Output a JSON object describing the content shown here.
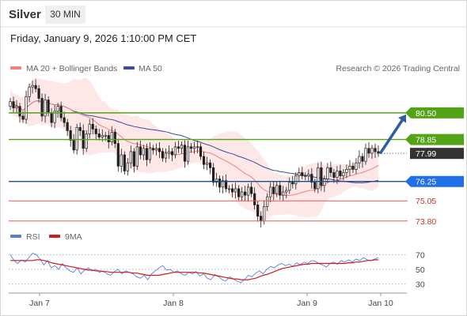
{
  "header": {
    "symbol": "Silver",
    "timeframe": "30 MIN",
    "datetime": "Friday, January 9, 2026 1:10:00 PM CET"
  },
  "legend": {
    "ma20": "MA 20 + Bollinger Bands",
    "ma50": "MA 50",
    "copyright": "Research © 2026 Trading Central",
    "rsi": "RSI",
    "ma9": "9MA"
  },
  "colors": {
    "ma20": "#f08080",
    "ma50": "#3a4e9c",
    "band": "#fde3e3",
    "candle": "#1f1f1f",
    "resistance": "#53a317",
    "pivot": "#1a4e8c",
    "support": "#e85959",
    "current": "#333333",
    "rsi": "#5b7fd8",
    "rsi_ma": "#d11a1a",
    "arrow": "#2d5f9e"
  },
  "chart_data": [
    {
      "type": "candlestick",
      "x_labels": [
        "Jan 7",
        "Jan 8",
        "Jan 9",
        "Jan 10"
      ],
      "ylim": [
        73.3,
        82.5
      ],
      "grid": false,
      "legend_position": "top-left",
      "levels": [
        {
          "value": 80.5,
          "label": "80.50",
          "kind": "resistance"
        },
        {
          "value": 78.85,
          "label": "78.85",
          "kind": "resistance"
        },
        {
          "value": 77.99,
          "label": "77.99",
          "kind": "current"
        },
        {
          "value": 76.25,
          "label": "76.25",
          "kind": "pivot"
        },
        {
          "value": 75.05,
          "label": "75.05",
          "kind": "support"
        },
        {
          "value": 73.8,
          "label": "73.80",
          "kind": "support"
        }
      ],
      "arrow": {
        "from": 77.99,
        "to": 80.5
      },
      "series": [
        {
          "name": "Silver",
          "close": [
            81.2,
            80.8,
            80.9,
            80.3,
            80.1,
            81.5,
            82.1,
            82.2,
            82.0,
            81.4,
            80.3,
            81.3,
            80.5,
            79.9,
            80.6,
            80.9,
            80.2,
            79.9,
            79.4,
            78.8,
            78.2,
            79.6,
            79.4,
            78.3,
            79.2,
            79.8,
            79.5,
            79.2,
            79.0,
            79.1,
            79.1,
            78.7,
            79.3,
            78.6,
            77.2,
            77.9,
            76.9,
            77.4,
            78.1,
            77.2,
            78.4,
            77.9,
            78.3,
            77.6,
            78.3,
            78.2,
            78.3,
            78.1,
            77.7,
            78.0,
            78.1,
            77.9,
            78.4,
            78.3,
            78.5,
            77.5,
            78.4,
            78.3,
            78.4,
            78.4,
            77.8,
            77.3,
            77.4,
            77.1,
            76.2,
            76.4,
            75.9,
            76.3,
            75.8,
            75.8,
            75.6,
            75.8,
            75.3,
            75.6,
            75.4,
            75.9,
            75.5,
            74.8,
            74.1,
            73.8,
            74.7,
            75.3,
            75.9,
            75.5,
            76.0,
            75.4,
            75.6,
            75.7,
            76.2,
            76.1,
            76.6,
            76.8,
            76.6,
            76.6,
            76.7,
            76.2,
            75.8,
            77.1,
            76.0,
            76.4,
            77.1,
            76.8,
            76.5,
            76.9,
            76.6,
            76.8,
            77.0,
            77.2,
            77.0,
            77.4,
            77.8,
            77.5,
            78.3,
            78.0,
            78.3,
            78.1,
            77.99
          ]
        }
      ]
    },
    {
      "type": "line",
      "ylim": [
        20,
        80
      ],
      "y_ticks": [
        70,
        50,
        30
      ],
      "grid": false,
      "legend_position": "top-left",
      "series": [
        {
          "name": "RSI",
          "values": [
            70,
            62,
            58,
            63,
            60,
            66,
            72,
            70,
            64,
            56,
            62,
            52,
            55,
            50,
            58,
            52,
            48,
            46,
            52,
            44,
            49,
            52,
            48,
            50,
            46,
            48,
            44,
            42,
            47,
            50,
            44,
            48,
            46,
            44,
            40,
            38,
            42,
            36,
            44,
            48,
            52,
            55,
            49,
            50,
            46,
            48,
            44,
            42,
            46,
            44,
            47,
            41,
            44,
            38,
            36,
            43,
            40,
            36,
            34,
            40,
            37,
            34,
            32,
            36,
            42,
            40,
            45,
            48,
            44,
            50,
            54,
            52,
            56,
            58,
            55,
            57,
            54,
            59,
            56,
            60,
            58,
            62,
            61,
            58,
            56,
            53,
            58,
            60,
            57,
            62,
            60,
            63,
            60,
            64,
            62,
            66,
            63,
            62,
            64,
            66
          ]
        },
        {
          "name": "9MA",
          "values": [
            62,
            62,
            62,
            62,
            62,
            62,
            62,
            63,
            63,
            62,
            61,
            59,
            58,
            57,
            56,
            55,
            54,
            53,
            52,
            51,
            50,
            49,
            49,
            48,
            48,
            47,
            47,
            46,
            46,
            46,
            46,
            46,
            46,
            45,
            45,
            44,
            43,
            42,
            42,
            42,
            42,
            43,
            44,
            45,
            46,
            46,
            46,
            46,
            46,
            46,
            46,
            45,
            45,
            44,
            43,
            42,
            41,
            40,
            39,
            38,
            37,
            37,
            36,
            36,
            36,
            37,
            38,
            40,
            42,
            43,
            45,
            47,
            49,
            51,
            52,
            53,
            54,
            55,
            56,
            57,
            57,
            58,
            58,
            58,
            58,
            58,
            58,
            58,
            58,
            58,
            58,
            59,
            59,
            60,
            60,
            61,
            62,
            62,
            63,
            63
          ]
        }
      ]
    }
  ]
}
